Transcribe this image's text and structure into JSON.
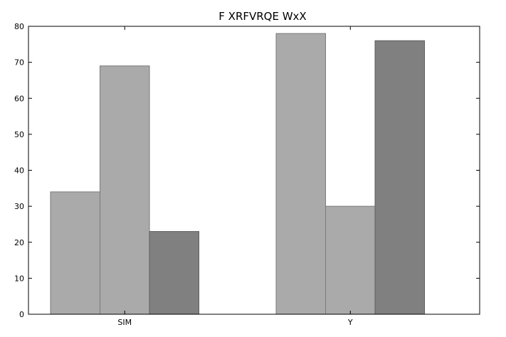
{
  "chart_data": {
    "type": "bar",
    "title": "F XRFVRQE WxX",
    "xlabel": "",
    "ylabel": "",
    "categories": [
      "SIM",
      "Y"
    ],
    "series": [
      {
        "values": [
          34,
          78
        ],
        "color": "#aaaaaa",
        "edge": "#7a7a7a"
      },
      {
        "values": [
          69,
          30
        ],
        "color": "#aaaaaa",
        "edge": "#7a7a7a"
      },
      {
        "values": [
          23,
          76
        ],
        "color": "#808080",
        "edge": "#5e5e5e"
      }
    ],
    "ylim": [
      0,
      80
    ],
    "yticks": [
      0,
      10,
      20,
      30,
      40,
      50,
      60,
      70,
      80
    ],
    "grid": false,
    "legend": "none"
  }
}
